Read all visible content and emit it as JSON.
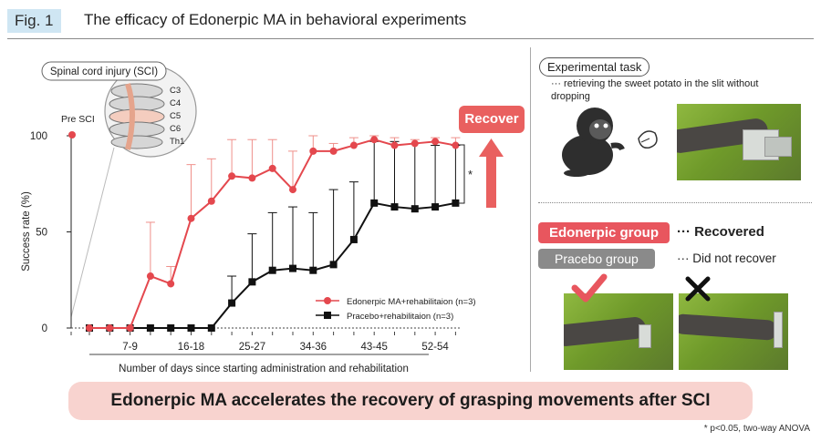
{
  "header": {
    "fig_label": "Fig. 1",
    "title": "The efficacy of Edonerpic MA in behavioral experiments"
  },
  "colors": {
    "edonerpic": "#e4484e",
    "edonerpic_err": "#ef8f8a",
    "placebo": "#111111",
    "accent_pink": "#f8d3cf",
    "recover_red": "#e9605f"
  },
  "chart_data": {
    "type": "line",
    "ylabel": "Success rate (%)",
    "xlabel": "Number of days since starting administration and rehabilitation",
    "ylim": [
      0,
      100
    ],
    "yticks": [
      0,
      50,
      100
    ],
    "x_tick_labels": [
      "7-9",
      "16-18",
      "25-27",
      "34-36",
      "43-45",
      "52-54"
    ],
    "pre_sci_label": "Pre SCI",
    "pre_sci_value": 100,
    "significance_mark": "*",
    "series": [
      {
        "name": "Edonerpic MA+rehabilitaion (n=3)",
        "values": [
          0,
          0,
          0,
          27,
          23,
          57,
          66,
          79,
          78,
          83,
          72,
          92,
          92,
          95,
          98,
          95,
          96,
          97,
          95
        ],
        "errors": [
          0,
          0,
          0,
          28,
          9,
          28,
          22,
          19,
          20,
          15,
          20,
          8,
          4,
          4,
          2,
          4,
          2,
          2,
          4
        ]
      },
      {
        "name": "Pracebo+rehabilitaion (n=3)",
        "values": [
          0,
          0,
          0,
          0,
          0,
          0,
          0,
          13,
          24,
          30,
          31,
          30,
          33,
          46,
          65,
          63,
          62,
          63,
          65
        ],
        "errors": [
          0,
          0,
          0,
          0,
          0,
          0,
          0,
          14,
          25,
          30,
          32,
          30,
          39,
          30,
          32,
          34,
          34,
          32,
          30
        ]
      }
    ]
  },
  "sci_callout": {
    "title": "Spinal cord injury (SCI)",
    "labels": [
      "C3",
      "C4",
      "C5",
      "C6",
      "Th1"
    ]
  },
  "recover_label": "Recover",
  "task": {
    "pill": "Experimental task",
    "description": "··· retrieving the sweet potato in the slit without dropping"
  },
  "groups": {
    "edonerpic_label": "Edonerpic group",
    "edonerpic_result": "··· Recovered",
    "placebo_label": "Pracebo group",
    "placebo_result": "··· Did not recover"
  },
  "conclusion": "Edonerpic MA accelerates the recovery of grasping movements after SCI",
  "footnote": "* p<0.05, two-way ANOVA"
}
